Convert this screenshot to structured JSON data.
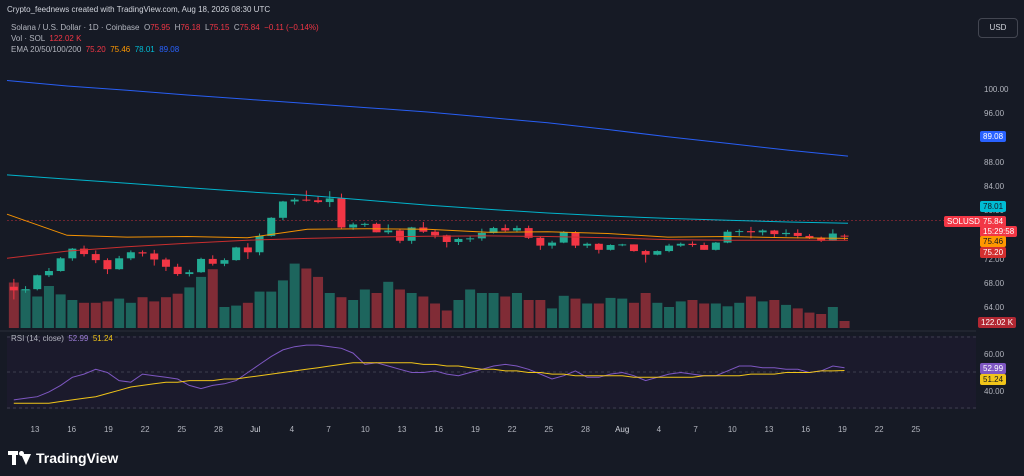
{
  "header": {
    "credit": "Crypto_feednews created with TradingView.com, Aug 18, 2026 08:30 UTC",
    "symbol": "Solana / U.S. Dollar · 1D · Coinbase",
    "o_label": "O",
    "o_value": "75.95",
    "h_label": "H",
    "h_value": "76.18",
    "l_label": "L",
    "l_value": "75.15",
    "c_label": "C",
    "c_value": "75.84",
    "change": "−0.11 (−0.14%)",
    "vol_label": "Vol · SOL",
    "vol_value": "122.02 K",
    "ema_label": "EMA 20/50/100/200",
    "ema20": "75.20",
    "ema50": "75.46",
    "ema100": "78.01",
    "ema200": "89.08"
  },
  "currency_button": "USD",
  "rsi": {
    "label": "RSI (14, close)",
    "value": "52.99",
    "ma_value": "51.24",
    "ticks": [
      "60.00",
      "40.00"
    ]
  },
  "price_axis": [
    "100.00",
    "96.00",
    "92.00",
    "88.00",
    "84.00",
    "80.00",
    "76.00",
    "72.00",
    "68.00",
    "64.00"
  ],
  "price_tags": {
    "ema200": "89.08",
    "ema100": "78.01",
    "symbol": "SOLUSD",
    "last": "75.84",
    "countdown": "15:29:58",
    "ema50": "75.46",
    "ema20": "75.20",
    "volume": "122.02 K"
  },
  "logo_text": "TradingView",
  "colors": {
    "up": "#22ab94",
    "down": "#f23645",
    "ema20": "#d32f2f",
    "ema50": "#ff9800",
    "ema100": "#00bcd4",
    "ema200": "#2962ff",
    "rsi": "#7e57c2",
    "rsi_ma": "#f0c419"
  },
  "chart_data": {
    "type": "candlestick",
    "x_ticks": [
      "13",
      "16",
      "19",
      "22",
      "25",
      "28",
      "Jul",
      "4",
      "7",
      "10",
      "13",
      "16",
      "19",
      "22",
      "25",
      "28",
      "Aug",
      "4",
      "7",
      "10",
      "13",
      "16",
      "19",
      "22",
      "25"
    ],
    "candles": [
      [
        67.5,
        68.8,
        65.4,
        66.9
      ],
      [
        66.9,
        67.6,
        66.5,
        67.1
      ],
      [
        67.1,
        69.5,
        66.9,
        69.4
      ],
      [
        69.4,
        70.6,
        69.1,
        70.1
      ],
      [
        70.1,
        72.4,
        70.0,
        72.2
      ],
      [
        72.2,
        73.9,
        71.8,
        73.8
      ],
      [
        73.8,
        74.3,
        72.5,
        72.9
      ],
      [
        72.9,
        73.5,
        71.4,
        71.9
      ],
      [
        71.9,
        72.2,
        69.6,
        70.4
      ],
      [
        70.4,
        72.6,
        70.3,
        72.2
      ],
      [
        72.2,
        73.5,
        71.9,
        73.2
      ],
      [
        73.2,
        73.5,
        72.5,
        73.0
      ],
      [
        73.0,
        73.6,
        71.0,
        72.0
      ],
      [
        72.0,
        72.3,
        70.1,
        70.8
      ],
      [
        70.8,
        71.3,
        69.3,
        69.6
      ],
      [
        69.6,
        70.3,
        69.2,
        69.9
      ],
      [
        69.9,
        72.3,
        69.8,
        72.1
      ],
      [
        72.1,
        72.7,
        71.0,
        71.3
      ],
      [
        71.3,
        72.2,
        70.9,
        71.9
      ],
      [
        71.9,
        74.1,
        71.8,
        74.0
      ],
      [
        74.0,
        74.7,
        72.1,
        73.2
      ],
      [
        73.2,
        76.3,
        72.7,
        75.9
      ],
      [
        75.9,
        79.0,
        75.8,
        78.9
      ],
      [
        78.9,
        81.7,
        78.5,
        81.6
      ],
      [
        81.6,
        82.2,
        81.1,
        81.9
      ],
      [
        81.9,
        83.4,
        81.6,
        81.8
      ],
      [
        81.8,
        82.4,
        81.3,
        81.5
      ],
      [
        81.5,
        83.3,
        80.7,
        82.1
      ],
      [
        82.1,
        82.9,
        77.1,
        77.3
      ],
      [
        77.3,
        78.1,
        76.9,
        77.8
      ],
      [
        77.8,
        78.1,
        77.4,
        77.9
      ],
      [
        77.9,
        78.1,
        76.5,
        76.5
      ],
      [
        76.5,
        77.8,
        76.2,
        76.8
      ],
      [
        76.8,
        77.1,
        74.7,
        75.1
      ],
      [
        75.1,
        77.4,
        74.6,
        77.3
      ],
      [
        77.3,
        78.2,
        76.4,
        76.6
      ],
      [
        76.6,
        76.9,
        75.5,
        76.0
      ],
      [
        76.0,
        76.1,
        74.0,
        74.9
      ],
      [
        74.9,
        75.6,
        74.4,
        75.4
      ],
      [
        75.4,
        75.8,
        74.9,
        75.5
      ],
      [
        75.5,
        77.1,
        75.1,
        76.4
      ],
      [
        76.4,
        77.4,
        76.3,
        77.2
      ],
      [
        77.2,
        77.8,
        76.6,
        76.8
      ],
      [
        76.8,
        77.6,
        76.6,
        77.2
      ],
      [
        77.2,
        77.6,
        75.4,
        75.6
      ],
      [
        75.6,
        75.8,
        73.6,
        74.3
      ],
      [
        74.3,
        75.1,
        73.8,
        74.8
      ],
      [
        74.8,
        76.7,
        74.7,
        76.5
      ],
      [
        76.5,
        76.7,
        73.9,
        74.3
      ],
      [
        74.3,
        74.8,
        73.9,
        74.6
      ],
      [
        74.6,
        74.7,
        73.0,
        73.6
      ],
      [
        73.6,
        74.5,
        73.5,
        74.4
      ],
      [
        74.4,
        74.6,
        74.2,
        74.5
      ],
      [
        74.5,
        74.5,
        73.3,
        73.4
      ],
      [
        73.4,
        73.6,
        71.5,
        72.8
      ],
      [
        72.8,
        73.5,
        72.7,
        73.4
      ],
      [
        73.4,
        74.6,
        73.2,
        74.3
      ],
      [
        74.3,
        74.8,
        74.1,
        74.6
      ],
      [
        74.6,
        75.0,
        74.1,
        74.4
      ],
      [
        74.4,
        74.8,
        73.6,
        73.6
      ],
      [
        73.6,
        74.9,
        73.5,
        74.8
      ],
      [
        74.8,
        76.9,
        74.7,
        76.6
      ],
      [
        76.6,
        77.0,
        75.9,
        76.7
      ],
      [
        76.7,
        77.4,
        75.5,
        76.5
      ],
      [
        76.5,
        77.0,
        76.0,
        76.8
      ],
      [
        76.8,
        76.9,
        75.7,
        76.2
      ],
      [
        76.2,
        77.0,
        75.8,
        76.4
      ],
      [
        76.4,
        77.0,
        75.5,
        75.9
      ],
      [
        75.9,
        76.2,
        75.4,
        75.6
      ],
      [
        75.6,
        75.8,
        74.9,
        75.1
      ],
      [
        75.1,
        77.0,
        75.1,
        76.3
      ],
      [
        75.95,
        76.18,
        75.15,
        75.84
      ]
    ],
    "volume": [
      0.65,
      0.55,
      0.45,
      0.6,
      0.48,
      0.4,
      0.36,
      0.36,
      0.38,
      0.42,
      0.36,
      0.44,
      0.38,
      0.44,
      0.49,
      0.58,
      0.73,
      0.84,
      0.3,
      0.32,
      0.36,
      0.52,
      0.52,
      0.68,
      0.92,
      0.85,
      0.73,
      0.5,
      0.44,
      0.4,
      0.55,
      0.5,
      0.66,
      0.55,
      0.5,
      0.45,
      0.35,
      0.25,
      0.4,
      0.55,
      0.5,
      0.5,
      0.45,
      0.5,
      0.4,
      0.4,
      0.28,
      0.46,
      0.42,
      0.35,
      0.35,
      0.43,
      0.42,
      0.36,
      0.5,
      0.36,
      0.3,
      0.38,
      0.4,
      0.35,
      0.35,
      0.31,
      0.36,
      0.45,
      0.38,
      0.4,
      0.33,
      0.28,
      0.22,
      0.2,
      0.3,
      0.1
    ],
    "ema20": [
      72.2,
      73.4,
      74.1,
      74.7,
      75.2,
      75.5,
      75.7,
      75.84,
      75.9,
      75.8,
      75.6,
      75.3,
      75.2,
      75.2,
      75.2
    ],
    "ema50": [
      79.5,
      76.0,
      75.7,
      75.8,
      75.6,
      77.0,
      77.1,
      77.0,
      76.5,
      76.6,
      76.3,
      75.7,
      75.8,
      75.6,
      75.5
    ],
    "ema100": [
      86.0,
      85.3,
      84.6,
      83.9,
      83.2,
      82.6,
      81.8,
      81.0,
      80.3,
      79.7,
      79.2,
      78.8,
      78.5,
      78.2,
      78.0
    ],
    "ema200": [
      101.6,
      100.7,
      100.0,
      99.2,
      98.5,
      97.8,
      97.1,
      96.4,
      95.5,
      94.6,
      93.5,
      92.3,
      91.2,
      90.1,
      89.1
    ],
    "rsi": [
      33,
      34,
      35,
      38,
      42,
      47,
      49,
      52,
      50,
      45,
      44,
      49,
      48,
      47,
      46,
      42,
      40,
      42,
      43,
      45,
      50,
      55,
      60,
      64,
      66,
      67,
      67,
      66,
      65,
      62,
      55,
      56,
      54,
      52,
      50,
      50,
      51,
      49,
      48,
      50,
      52,
      54,
      55,
      54,
      52,
      49,
      46,
      48,
      51,
      47,
      47,
      49,
      50,
      48,
      45,
      47,
      49,
      50,
      49,
      48,
      48,
      51,
      54,
      54,
      53,
      53,
      52,
      52,
      50,
      51,
      54,
      52.99
    ],
    "rsi_ma": [
      31,
      31,
      31,
      31,
      32,
      33,
      34,
      35,
      37,
      39,
      41,
      42,
      43,
      44,
      44,
      45,
      45,
      45,
      46,
      46,
      47,
      48,
      49,
      50,
      51,
      52,
      53,
      54,
      55,
      56,
      56,
      56,
      56,
      56,
      56,
      55,
      55,
      54,
      54,
      53,
      52,
      52,
      51,
      51,
      50,
      50,
      49,
      49,
      48,
      48,
      48,
      48,
      48,
      47,
      47,
      47,
      47,
      47,
      47,
      48,
      48,
      48,
      48,
      49,
      49,
      49,
      50,
      50,
      50,
      51,
      51,
      51.24
    ],
    "price_range": [
      62,
      104
    ],
    "rsi_range": [
      28,
      72
    ]
  }
}
